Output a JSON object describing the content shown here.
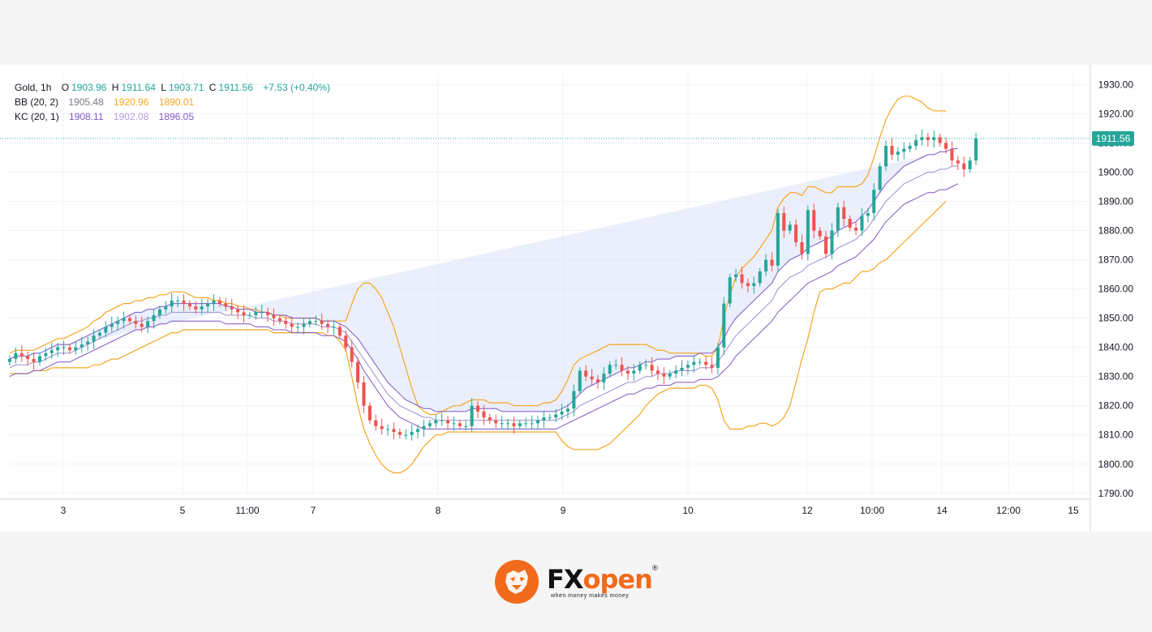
{
  "legend": {
    "symbol": "Gold, 1h",
    "open_label": "O",
    "open": "1903.96",
    "high_label": "H",
    "high": "1911.64",
    "low_label": "L",
    "low": "1903.71",
    "close_label": "C",
    "close": "1911.56",
    "change": "+7.53 (+0.40%)",
    "bb_label": "BB (20, 2)",
    "bb_basis": "1905.48",
    "bb_upper": "1920.96",
    "bb_lower": "1890.01",
    "kc_label": "KC (20, 1)",
    "kc_upper": "1908.11",
    "kc_basis": "1902.08",
    "kc_lower": "1896.05"
  },
  "price_label": "1911.56",
  "brand": {
    "name_fx": "FX",
    "name_open": "open",
    "tagline": "when money makes money",
    "reg": "®"
  },
  "colors": {
    "up": "#26a69a",
    "down": "#ef5350",
    "bb": "#f5a623",
    "kc": "#7e57c2",
    "kc_fill": "#d8e2f8",
    "grid": "#f0f3fa",
    "text": "#131722"
  },
  "chart_data": {
    "type": "candlestick",
    "title": "Gold, 1h",
    "ylim": [
      1788,
      1934
    ],
    "y_ticks": [
      "1930.00",
      "1920.00",
      "1910.00",
      "1900.00",
      "1890.00",
      "1880.00",
      "1870.00",
      "1860.00",
      "1850.00",
      "1840.00",
      "1830.00",
      "1820.00",
      "1810.00",
      "1800.00",
      "1790.00"
    ],
    "x_ticks": [
      "3",
      "5",
      "11:00",
      "7",
      "8",
      "9",
      "10",
      "12",
      "10:00",
      "14",
      "12:00",
      "15"
    ],
    "last_price": 1911.56,
    "close": [
      1836,
      1838,
      1837,
      1836,
      1835,
      1837,
      1838,
      1839,
      1840,
      1840,
      1839,
      1840,
      1841,
      1842,
      1844,
      1845,
      1847,
      1848,
      1849,
      1850,
      1849,
      1848,
      1847,
      1849,
      1851,
      1853,
      1854,
      1856,
      1856,
      1855,
      1854,
      1853,
      1854,
      1855,
      1856,
      1855,
      1854,
      1853,
      1852,
      1851,
      1851,
      1852,
      1852,
      1851,
      1850,
      1849,
      1848,
      1847,
      1847,
      1848,
      1849,
      1849,
      1848,
      1847,
      1847,
      1844,
      1840,
      1835,
      1828,
      1820,
      1815,
      1813,
      1812,
      1812,
      1811,
      1810,
      1810,
      1811,
      1812,
      1813,
      1814,
      1815,
      1815,
      1814,
      1814,
      1813,
      1813,
      1820,
      1818,
      1816,
      1815,
      1814,
      1814,
      1814,
      1813,
      1814,
      1814,
      1814,
      1815,
      1816,
      1816,
      1817,
      1818,
      1819,
      1825,
      1832,
      1830,
      1829,
      1828,
      1831,
      1834,
      1834,
      1832,
      1831,
      1832,
      1834,
      1834,
      1832,
      1831,
      1830,
      1831,
      1832,
      1833,
      1834,
      1835,
      1835,
      1834,
      1833,
      1840,
      1855,
      1864,
      1865,
      1862,
      1861,
      1862,
      1866,
      1870,
      1868,
      1886,
      1880,
      1882,
      1876,
      1872,
      1887,
      1880,
      1878,
      1872,
      1880,
      1888,
      1884,
      1881,
      1880,
      1885,
      1886,
      1894,
      1902,
      1909,
      1906,
      1907,
      1908,
      1909,
      1911,
      1912,
      1911,
      1912,
      1910,
      1908,
      1904,
      1903,
      1901,
      1904,
      1911.56
    ],
    "bb_upper": [
      1838,
      1839,
      1839,
      1839,
      1839,
      1840,
      1841,
      1842,
      1843,
      1843,
      1844,
      1845,
      1846,
      1847,
      1849,
      1850,
      1852,
      1853,
      1854,
      1855,
      1855,
      1856,
      1856,
      1857,
      1857,
      1858,
      1858,
      1859,
      1859,
      1859,
      1858,
      1857,
      1857,
      1857,
      1856,
      1856,
      1855,
      1855,
      1854,
      1854,
      1853,
      1853,
      1852,
      1852,
      1851,
      1851,
      1850,
      1850,
      1850,
      1850,
      1850,
      1850,
      1849,
      1849,
      1849,
      1849,
      1849,
      1855,
      1860,
      1862,
      1862,
      1860,
      1857,
      1852,
      1847,
      1840,
      1833,
      1826,
      1820,
      1818,
      1817,
      1817,
      1818,
      1819,
      1820,
      1820,
      1821,
      1822,
      1822,
      1822,
      1821,
      1821,
      1821,
      1821,
      1820,
      1820,
      1820,
      1820,
      1820,
      1821,
      1821,
      1822,
      1825,
      1829,
      1834,
      1836,
      1837,
      1838,
      1839,
      1840,
      1841,
      1841,
      1841,
      1841,
      1841,
      1841,
      1841,
      1840,
      1839,
      1839,
      1838,
      1838,
      1838,
      1838,
      1838,
      1838,
      1837,
      1837,
      1840,
      1850,
      1858,
      1864,
      1867,
      1869,
      1871,
      1874,
      1877,
      1880,
      1888,
      1891,
      1893,
      1893,
      1892,
      1895,
      1895,
      1894,
      1893,
      1893,
      1895,
      1895,
      1895,
      1895,
      1896,
      1899,
      1905,
      1912,
      1918,
      1922,
      1925,
      1926,
      1926,
      1925,
      1924,
      1922,
      1921,
      1921,
      1920.96
    ],
    "bb_lower": [
      1831,
      1831,
      1831,
      1831,
      1832,
      1832,
      1832,
      1833,
      1833,
      1833,
      1833,
      1833,
      1833,
      1833,
      1834,
      1834,
      1835,
      1836,
      1836,
      1837,
      1838,
      1839,
      1840,
      1841,
      1842,
      1843,
      1844,
      1845,
      1845,
      1846,
      1846,
      1846,
      1846,
      1846,
      1846,
      1846,
      1846,
      1846,
      1846,
      1846,
      1846,
      1846,
      1846,
      1846,
      1845,
      1845,
      1845,
      1845,
      1845,
      1845,
      1845,
      1845,
      1845,
      1844,
      1844,
      1842,
      1839,
      1830,
      1820,
      1812,
      1807,
      1803,
      1800,
      1798,
      1797,
      1797,
      1798,
      1800,
      1803,
      1806,
      1808,
      1810,
      1810,
      1811,
      1811,
      1811,
      1811,
      1811,
      1811,
      1811,
      1811,
      1811,
      1811,
      1811,
      1811,
      1811,
      1811,
      1811,
      1811,
      1811,
      1811,
      1811,
      1808,
      1806,
      1805,
      1805,
      1805,
      1805,
      1805,
      1806,
      1807,
      1809,
      1811,
      1813,
      1815,
      1817,
      1820,
      1822,
      1824,
      1825,
      1826,
      1826,
      1826,
      1826,
      1826,
      1827,
      1827,
      1826,
      1822,
      1815,
      1812,
      1812,
      1812,
      1813,
      1813,
      1814,
      1814,
      1813,
      1814,
      1816,
      1820,
      1828,
      1836,
      1843,
      1852,
      1859,
      1860,
      1860,
      1861,
      1862,
      1862,
      1864,
      1866,
      1866,
      1867,
      1869,
      1870,
      1872,
      1874,
      1876,
      1878,
      1880,
      1882,
      1884,
      1886,
      1888,
      1890.01
    ],
    "kc_upper": [
      1836,
      1837,
      1837,
      1837,
      1838,
      1838,
      1839,
      1840,
      1841,
      1841,
      1841,
      1842,
      1843,
      1844,
      1845,
      1846,
      1847,
      1848,
      1849,
      1850,
      1851,
      1852,
      1852,
      1853,
      1853,
      1854,
      1854,
      1855,
      1855,
      1855,
      1855,
      1855,
      1855,
      1855,
      1855,
      1855,
      1854,
      1854,
      1853,
      1853,
      1853,
      1852,
      1852,
      1852,
      1851,
      1851,
      1851,
      1850,
      1850,
      1850,
      1850,
      1850,
      1849,
      1849,
      1849,
      1848,
      1847,
      1845,
      1843,
      1840,
      1837,
      1834,
      1831,
      1828,
      1826,
      1824,
      1822,
      1821,
      1820,
      1819,
      1819,
      1818,
      1818,
      1818,
      1818,
      1818,
      1818,
      1819,
      1819,
      1819,
      1819,
      1819,
      1818,
      1818,
      1818,
      1818,
      1818,
      1818,
      1818,
      1818,
      1818,
      1818,
      1819,
      1820,
      1822,
      1824,
      1826,
      1827,
      1828,
      1829,
      1830,
      1831,
      1832,
      1833,
      1833,
      1834,
      1835,
      1835,
      1836,
      1836,
      1836,
      1837,
      1837,
      1837,
      1837,
      1838,
      1838,
      1838,
      1840,
      1843,
      1847,
      1850,
      1852,
      1854,
      1856,
      1858,
      1860,
      1862,
      1866,
      1868,
      1870,
      1871,
      1872,
      1874,
      1875,
      1876,
      1877,
      1878,
      1880,
      1881,
      1882,
      1883,
      1885,
      1887,
      1890,
      1893,
      1896,
      1898,
      1900,
      1902,
      1903,
      1904,
      1905,
      1906,
      1906,
      1907,
      1907,
      1908,
      1908.11
    ],
    "kc_basis": [
      1833,
      1834,
      1834,
      1834,
      1835,
      1835,
      1836,
      1837,
      1838,
      1838,
      1838,
      1839,
      1840,
      1841,
      1842,
      1843,
      1844,
      1845,
      1846,
      1847,
      1848,
      1849,
      1849,
      1850,
      1850,
      1851,
      1851,
      1852,
      1852,
      1852,
      1852,
      1852,
      1852,
      1852,
      1852,
      1852,
      1851,
      1851,
      1851,
      1851,
      1851,
      1850,
      1850,
      1850,
      1849,
      1849,
      1849,
      1848,
      1848,
      1848,
      1848,
      1848,
      1847,
      1847,
      1847,
      1846,
      1845,
      1842,
      1839,
      1836,
      1833,
      1830,
      1827,
      1824,
      1822,
      1820,
      1819,
      1818,
      1817,
      1816,
      1816,
      1815,
      1815,
      1815,
      1815,
      1815,
      1815,
      1815,
      1815,
      1815,
      1815,
      1815,
      1815,
      1815,
      1815,
      1815,
      1815,
      1815,
      1815,
      1815,
      1815,
      1815,
      1816,
      1817,
      1818,
      1820,
      1821,
      1822,
      1823,
      1824,
      1825,
      1826,
      1827,
      1828,
      1828,
      1829,
      1830,
      1830,
      1831,
      1831,
      1831,
      1832,
      1832,
      1832,
      1832,
      1833,
      1833,
      1833,
      1835,
      1838,
      1841,
      1844,
      1846,
      1848,
      1850,
      1852,
      1854,
      1856,
      1860,
      1862,
      1864,
      1865,
      1866,
      1868,
      1869,
      1870,
      1871,
      1872,
      1874,
      1875,
      1876,
      1877,
      1879,
      1881,
      1884,
      1887,
      1890,
      1892,
      1894,
      1896,
      1897,
      1898,
      1899,
      1900,
      1900,
      1901,
      1901,
      1902,
      1902.08
    ],
    "kc_lower": [
      1830,
      1831,
      1831,
      1831,
      1832,
      1832,
      1833,
      1834,
      1835,
      1835,
      1835,
      1836,
      1837,
      1838,
      1839,
      1840,
      1841,
      1842,
      1843,
      1844,
      1845,
      1846,
      1846,
      1847,
      1847,
      1848,
      1848,
      1849,
      1849,
      1849,
      1849,
      1849,
      1849,
      1849,
      1849,
      1849,
      1848,
      1848,
      1848,
      1848,
      1848,
      1847,
      1847,
      1847,
      1846,
      1846,
      1846,
      1845,
      1845,
      1845,
      1845,
      1845,
      1844,
      1844,
      1844,
      1843,
      1842,
      1839,
      1836,
      1832,
      1829,
      1826,
      1823,
      1820,
      1818,
      1816,
      1815,
      1814,
      1813,
      1812,
      1812,
      1812,
      1812,
      1812,
      1812,
      1812,
      1812,
      1812,
      1812,
      1812,
      1812,
      1812,
      1812,
      1812,
      1812,
      1812,
      1812,
      1812,
      1812,
      1812,
      1812,
      1812,
      1813,
      1814,
      1815,
      1816,
      1817,
      1818,
      1819,
      1820,
      1821,
      1822,
      1823,
      1824,
      1824,
      1825,
      1826,
      1826,
      1827,
      1827,
      1827,
      1828,
      1828,
      1828,
      1828,
      1829,
      1829,
      1829,
      1830,
      1832,
      1834,
      1837,
      1839,
      1841,
      1843,
      1845,
      1847,
      1849,
      1852,
      1854,
      1856,
      1858,
      1860,
      1862,
      1863,
      1864,
      1865,
      1866,
      1868,
      1869,
      1870,
      1871,
      1873,
      1875,
      1877,
      1880,
      1883,
      1885,
      1887,
      1889,
      1890,
      1891,
      1892,
      1893,
      1893,
      1894,
      1894,
      1895,
      1896.05
    ]
  }
}
